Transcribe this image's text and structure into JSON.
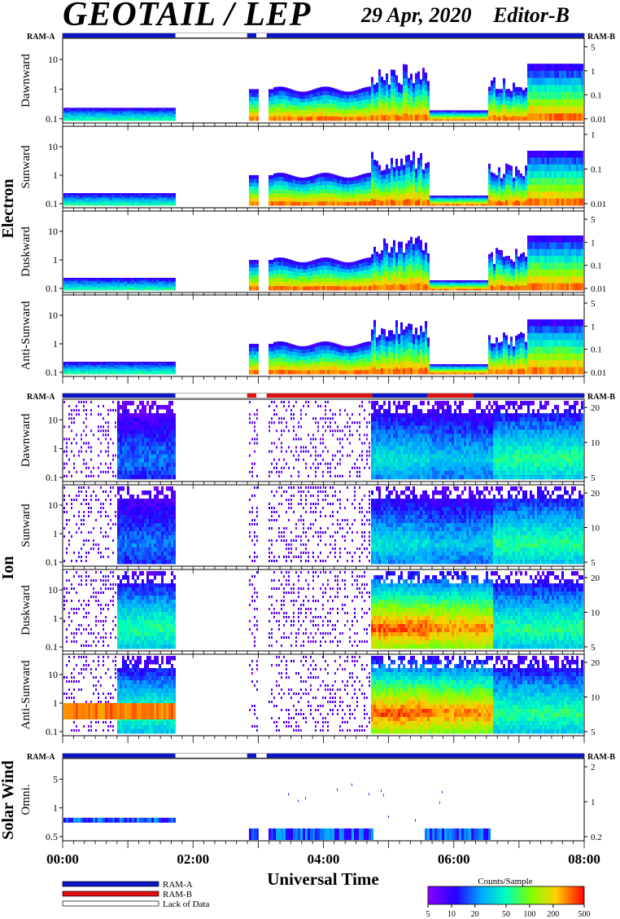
{
  "header": {
    "title": "GEOTAIL / LEP",
    "date": "29 Apr, 2020",
    "editor": "Editor-B"
  },
  "ram_labels": {
    "left": "RAM-A",
    "right": "RAM-B"
  },
  "groups": [
    {
      "name": "Electron"
    },
    {
      "name": "Ion"
    },
    {
      "name": "Solar Wind"
    }
  ],
  "panels": [
    {
      "label": "Dawnward",
      "group": 0,
      "left_ticks": [
        "10",
        "1",
        "0.1"
      ],
      "right_ticks": [
        "5",
        "1",
        "0.1",
        "0.01"
      ]
    },
    {
      "label": "Sunward",
      "group": 0,
      "left_ticks": [
        "10",
        "1",
        "0.1"
      ],
      "right_ticks": [
        "1",
        "0.1",
        "0.01"
      ]
    },
    {
      "label": "Duskward",
      "group": 0,
      "left_ticks": [
        "10",
        "1",
        "0.1"
      ],
      "right_ticks": [
        "5",
        "1",
        "0.1",
        "0.01"
      ]
    },
    {
      "label": "Anti-Sunward",
      "group": 0,
      "left_ticks": [
        "10",
        "1",
        "0.1"
      ],
      "right_ticks": [
        "5",
        "1",
        "0.1",
        "0.01"
      ]
    },
    {
      "label": "Dawnward",
      "group": 1,
      "left_ticks": [
        "10",
        "1",
        "0.1"
      ],
      "right_ticks": [
        "20",
        "10",
        "5"
      ]
    },
    {
      "label": "Sunward",
      "group": 1,
      "left_ticks": [
        "10",
        "1",
        "0.1"
      ],
      "right_ticks": [
        "20",
        "10",
        "5"
      ]
    },
    {
      "label": "Duskward",
      "group": 1,
      "left_ticks": [
        "10",
        "1",
        "0.1"
      ],
      "right_ticks": [
        "20",
        "10",
        "5"
      ]
    },
    {
      "label": "Anti-Sunward",
      "group": 1,
      "left_ticks": [
        "10",
        "1",
        "0.1"
      ],
      "right_ticks": [
        "20",
        "10",
        "5"
      ]
    },
    {
      "label": "Omni.",
      "group": 2,
      "left_ticks": [
        "5",
        "1",
        "0.5"
      ],
      "right_ticks": [
        "2",
        "1",
        "0.2"
      ]
    }
  ],
  "chart_data": {
    "type": "heatmap",
    "xlabel": "Universal Time",
    "x_ticks": [
      "00:00",
      "02:00",
      "04:00",
      "06:00",
      "08:00"
    ],
    "xlim": [
      "00:00",
      "08:00"
    ],
    "data_gaps_hours": [
      [
        1.73,
        2.83
      ],
      [
        2.98,
        3.13
      ]
    ],
    "ram_status": {
      "electron": [
        [
          "A",
          0,
          1.73
        ],
        [
          "none",
          1.73,
          2.83
        ],
        [
          "A",
          2.83,
          2.97
        ],
        [
          "none",
          2.97,
          3.13
        ],
        [
          "A",
          3.13,
          8
        ]
      ],
      "ion": [
        [
          "A",
          0,
          1.73
        ],
        [
          "none",
          1.73,
          2.83
        ],
        [
          "B",
          2.83,
          2.97
        ],
        [
          "none",
          2.97,
          3.13
        ],
        [
          "B",
          3.13,
          4.75
        ],
        [
          "A",
          4.75,
          5.6
        ],
        [
          "B",
          5.6,
          6.3
        ],
        [
          "A",
          6.3,
          8
        ]
      ],
      "solar_wind": [
        [
          "A",
          0,
          1.73
        ],
        [
          "none",
          1.73,
          2.83
        ],
        [
          "A",
          2.83,
          2.97
        ],
        [
          "none",
          2.97,
          3.13
        ],
        [
          "A",
          3.13,
          8
        ]
      ]
    },
    "colorbar": {
      "title": "Counts/Sample",
      "ticks": [
        "5",
        "10",
        "20",
        "50",
        "100",
        "200",
        "500"
      ],
      "range": [
        5,
        500
      ],
      "scale": "log"
    }
  },
  "legend": [
    {
      "label": "RAM-A",
      "color": "#0b16c9"
    },
    {
      "label": "RAM-B",
      "color": "#e01010"
    },
    {
      "label": "Lack of Data",
      "color": "#ffffff"
    }
  ]
}
